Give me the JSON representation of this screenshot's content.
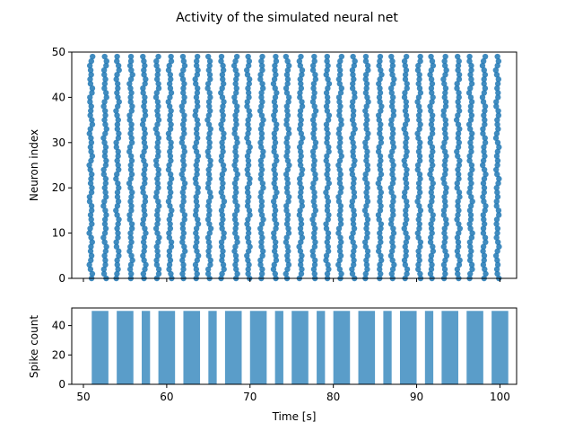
{
  "title": "Activity of the simulated neural net",
  "colors": {
    "marker": "#1f77b4",
    "bar": "#5a9dc9"
  },
  "chart_data": [
    {
      "type": "scatter",
      "title": "",
      "xlabel": "",
      "ylabel": "Neuron index",
      "xlim": [
        48.6,
        102.0
      ],
      "ylim": [
        0,
        50
      ],
      "yticks": [
        0,
        10,
        20,
        30,
        40,
        50
      ],
      "neurons": 50,
      "grid": false,
      "burst_times": [
        50.9,
        52.6,
        54.1,
        55.7,
        57.3,
        58.9,
        60.4,
        62.0,
        63.6,
        65.1,
        66.7,
        68.3,
        69.8,
        71.4,
        73.0,
        74.5,
        76.1,
        77.7,
        79.3,
        80.8,
        82.4,
        84.0,
        85.6,
        87.1,
        88.7,
        90.3,
        91.8,
        93.4,
        95.0,
        96.5,
        98.1,
        99.7
      ]
    },
    {
      "type": "bar",
      "title": "",
      "xlabel": "Time [s]",
      "ylabel": "Spike count",
      "xlim": [
        48.6,
        102.0
      ],
      "ylim": [
        0,
        52
      ],
      "xticks": [
        50,
        60,
        70,
        80,
        90,
        100
      ],
      "yticks": [
        0,
        20,
        40
      ],
      "bars": [
        {
          "start": 51.0,
          "end": 53.0,
          "value": 50
        },
        {
          "start": 54.0,
          "end": 56.0,
          "value": 50
        },
        {
          "start": 57.0,
          "end": 58.0,
          "value": 50
        },
        {
          "start": 59.0,
          "end": 61.0,
          "value": 50
        },
        {
          "start": 62.0,
          "end": 64.0,
          "value": 50
        },
        {
          "start": 65.0,
          "end": 66.0,
          "value": 50
        },
        {
          "start": 67.0,
          "end": 69.0,
          "value": 50
        },
        {
          "start": 70.0,
          "end": 72.0,
          "value": 50
        },
        {
          "start": 73.0,
          "end": 74.0,
          "value": 50
        },
        {
          "start": 75.0,
          "end": 77.0,
          "value": 50
        },
        {
          "start": 78.0,
          "end": 79.0,
          "value": 50
        },
        {
          "start": 80.0,
          "end": 82.0,
          "value": 50
        },
        {
          "start": 83.0,
          "end": 85.0,
          "value": 50
        },
        {
          "start": 86.0,
          "end": 87.0,
          "value": 50
        },
        {
          "start": 88.0,
          "end": 90.0,
          "value": 50
        },
        {
          "start": 91.0,
          "end": 92.0,
          "value": 50
        },
        {
          "start": 93.0,
          "end": 95.0,
          "value": 50
        },
        {
          "start": 96.0,
          "end": 98.0,
          "value": 50
        },
        {
          "start": 99.0,
          "end": 101.0,
          "value": 50
        }
      ]
    }
  ]
}
